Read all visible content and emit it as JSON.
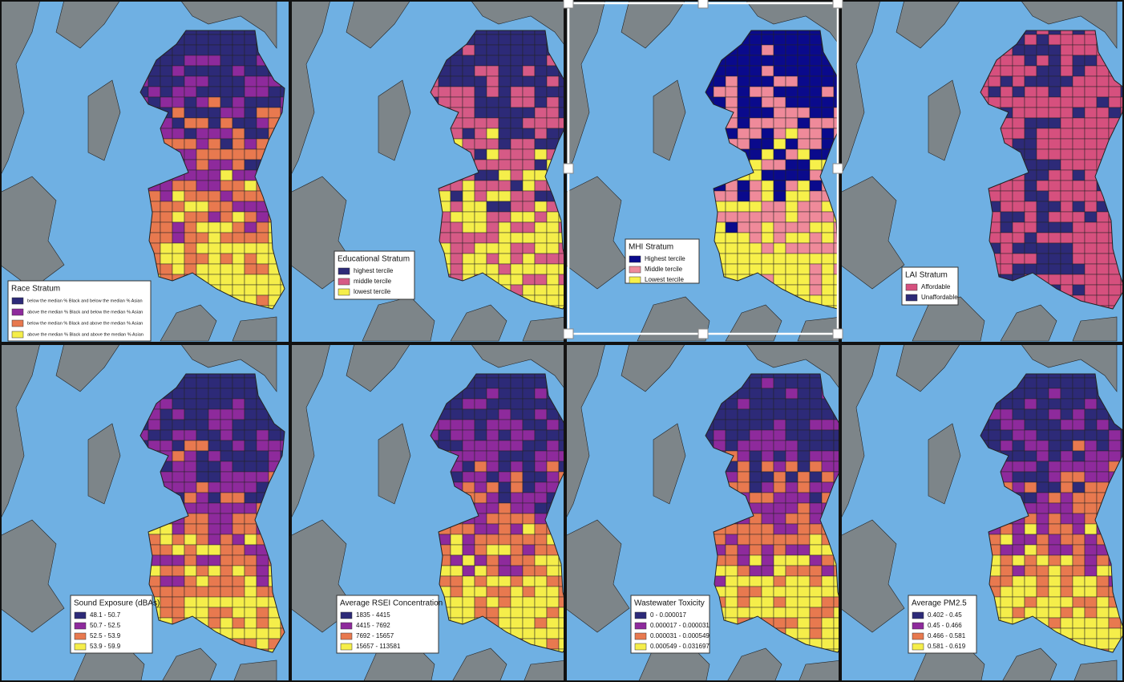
{
  "panels": [
    {
      "title": "Race Stratum",
      "items": [
        {
          "label": "below the median % Black and below the median % Asian",
          "color": "#2d2a78"
        },
        {
          "label": "above the median % Black and below the median % Asian",
          "color": "#8e2a9c"
        },
        {
          "label": "below the median % Black and above the median % Asian",
          "color": "#e8794f"
        },
        {
          "label": "above the median % Black and above the median % Asian",
          "color": "#f5ee4a"
        }
      ]
    },
    {
      "title": "Educational Stratum",
      "items": [
        {
          "label": "highest tercile",
          "color": "#2d2a78"
        },
        {
          "label": "middle tercile",
          "color": "#d65a86"
        },
        {
          "label": "lowest tercile",
          "color": "#f5ee4a"
        }
      ]
    },
    {
      "title": "MHI Stratum",
      "items": [
        {
          "label": "Highest tercile",
          "color": "#0a0a8c"
        },
        {
          "label": "Middle tercile",
          "color": "#ef8a9a"
        },
        {
          "label": "Lowest tercile",
          "color": "#f7f04a"
        }
      ]
    },
    {
      "title": "LAI Stratum",
      "items": [
        {
          "label": "Affordable",
          "color": "#d6507e"
        },
        {
          "label": "Unaffordable",
          "color": "#2d2a78"
        }
      ]
    },
    {
      "title": "Sound Exposure (dBAs)",
      "items": [
        {
          "label": "48.1 - 50.7",
          "color": "#2d2a78"
        },
        {
          "label": "50.7 - 52.5",
          "color": "#8e2a9c"
        },
        {
          "label": "52.5 - 53.9",
          "color": "#e8794f"
        },
        {
          "label": "53.9 - 59.9",
          "color": "#f5ee4a"
        }
      ]
    },
    {
      "title": "Average RSEI Concentration",
      "items": [
        {
          "label": "1835 - 4415",
          "color": "#2d2a78"
        },
        {
          "label": "4415 - 7692",
          "color": "#8e2a9c"
        },
        {
          "label": "7692 - 15657",
          "color": "#e8794f"
        },
        {
          "label": "15657 - 113581",
          "color": "#f5ee4a"
        }
      ]
    },
    {
      "title": "Wastewater Toxicity",
      "items": [
        {
          "label": "0 - 0.000017",
          "color": "#2d2a78"
        },
        {
          "label": "0.000017 - 0.000031",
          "color": "#8e2a9c"
        },
        {
          "label": "0.000031 - 0.000549",
          "color": "#e8794f"
        },
        {
          "label": "0.000549 - 0.031697",
          "color": "#f5ee4a"
        }
      ]
    },
    {
      "title": "Average PM2.5",
      "items": [
        {
          "label": "0.402 - 0.45",
          "color": "#2d2a78"
        },
        {
          "label": "0.45 - 0.466",
          "color": "#8e2a9c"
        },
        {
          "label": "0.466 - 0.581",
          "color": "#e8794f"
        },
        {
          "label": "0.581 - 0.619",
          "color": "#f5ee4a"
        }
      ]
    }
  ]
}
